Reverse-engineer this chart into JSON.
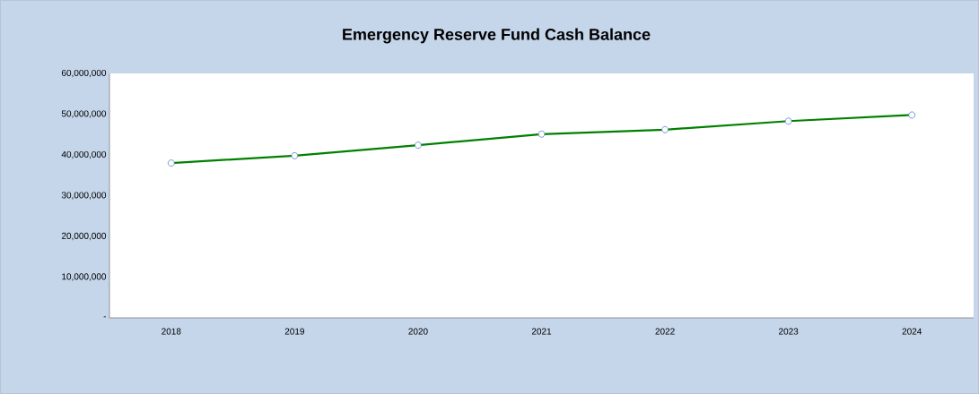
{
  "chart_data": {
    "type": "line",
    "title": "Emergency Reserve Fund Cash Balance",
    "categories": [
      "2018",
      "2019",
      "2020",
      "2021",
      "2022",
      "2023",
      "2024"
    ],
    "series": [
      {
        "color": "#008000",
        "values": [
          38000000,
          39800000,
          42400000,
          45100000,
          46200000,
          48300000,
          49800000
        ]
      }
    ],
    "ylim": [
      0,
      60000000
    ],
    "yticks": [
      {
        "value": 0,
        "label": "-"
      },
      {
        "value": 10000000,
        "label": "10,000,000"
      },
      {
        "value": 20000000,
        "label": "20,000,000"
      },
      {
        "value": 30000000,
        "label": "30,000,000"
      },
      {
        "value": 40000000,
        "label": "40,000,000"
      },
      {
        "value": 50000000,
        "label": "50,000,000"
      },
      {
        "value": 60000000,
        "label": "60,000,000"
      }
    ],
    "marker": "circle",
    "grid": false
  }
}
